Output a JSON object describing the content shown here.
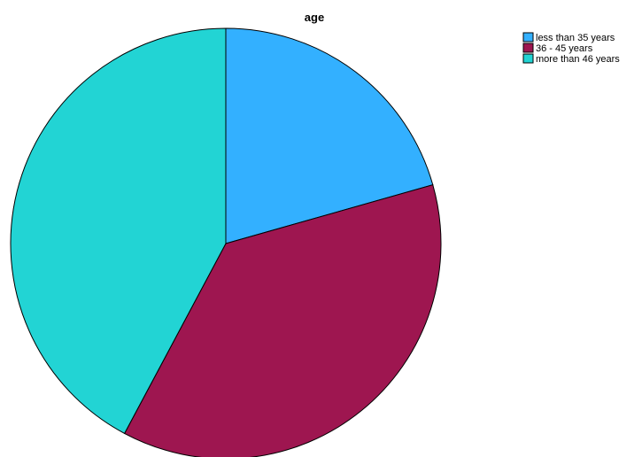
{
  "chart_data": {
    "type": "pie",
    "title": "age",
    "categories": [
      "less than 35 years",
      "36 - 45 years",
      "more than 46 years"
    ],
    "values": [
      20.6,
      37.2,
      42.2
    ],
    "colors": [
      "#33b0ff",
      "#9e1650",
      "#22d4d4"
    ],
    "start_angle": "12 o'clock",
    "direction": "clockwise",
    "legend_position": "top-right"
  }
}
